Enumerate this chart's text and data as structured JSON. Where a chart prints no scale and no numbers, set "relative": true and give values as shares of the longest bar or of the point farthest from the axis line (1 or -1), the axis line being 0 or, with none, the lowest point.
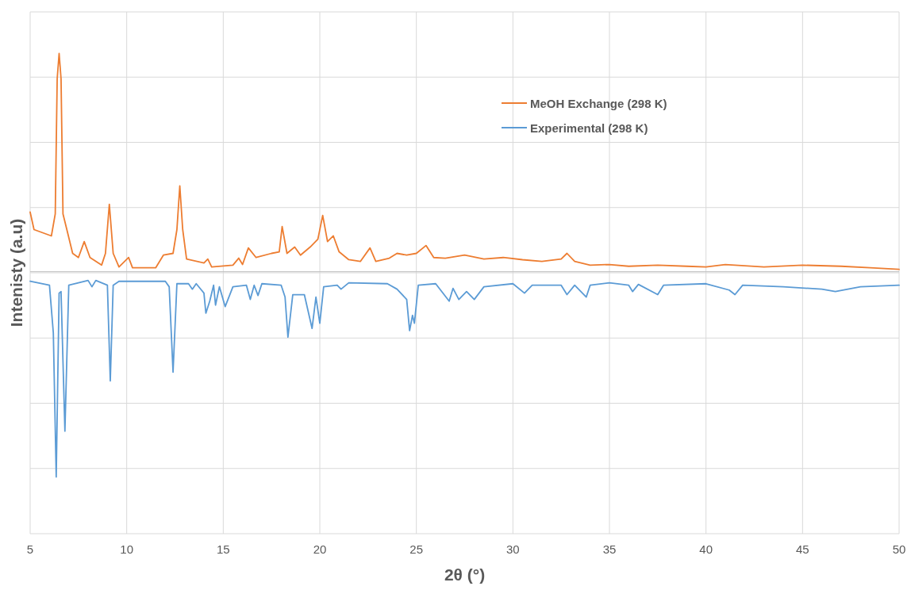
{
  "chart_data": {
    "type": "line",
    "relative": true,
    "xlabel": "2θ (°)",
    "ylabel": "Intenisty (a.u)",
    "xlim": [
      5,
      50
    ],
    "xticks": [
      5,
      10,
      15,
      20,
      25,
      30,
      35,
      40,
      45,
      50
    ],
    "grid": true,
    "legend": "top right",
    "line_style": "solid",
    "marker": "none",
    "series": [
      {
        "name": "MeOH Exchange (298 K)",
        "color": "#ed7d31",
        "x": [
          5.0,
          5.2,
          6.1,
          6.3,
          6.4,
          6.5,
          6.6,
          6.7,
          6.9,
          7.2,
          7.5,
          7.8,
          8.1,
          8.7,
          8.9,
          9.1,
          9.3,
          9.6,
          10.1,
          10.3,
          11.5,
          11.9,
          12.4,
          12.6,
          12.75,
          12.9,
          13.1,
          14.0,
          14.2,
          14.4,
          15.5,
          15.8,
          16.0,
          16.3,
          16.7,
          17.5,
          17.9,
          18.05,
          18.3,
          18.7,
          19.0,
          19.5,
          19.9,
          20.15,
          20.4,
          20.7,
          21.0,
          21.5,
          22.1,
          22.6,
          22.9,
          23.6,
          24.0,
          24.5,
          25.0,
          25.5,
          25.9,
          26.5,
          27.5,
          28.5,
          29.5,
          30.5,
          31.5,
          32.5,
          32.8,
          33.2,
          34.0,
          35.0,
          36.0,
          37.5,
          39.0,
          40.0,
          41.0,
          43.0,
          45.0,
          47.0,
          48.5,
          50.0
        ],
        "values": [
          0.273,
          0.193,
          0.164,
          0.265,
          0.884,
          1.0,
          0.884,
          0.265,
          0.193,
          0.084,
          0.065,
          0.138,
          0.065,
          0.03,
          0.084,
          0.309,
          0.084,
          0.022,
          0.065,
          0.018,
          0.018,
          0.076,
          0.084,
          0.193,
          0.393,
          0.193,
          0.058,
          0.04,
          0.058,
          0.022,
          0.03,
          0.062,
          0.033,
          0.109,
          0.065,
          0.084,
          0.091,
          0.207,
          0.084,
          0.113,
          0.076,
          0.113,
          0.149,
          0.258,
          0.138,
          0.164,
          0.091,
          0.055,
          0.047,
          0.109,
          0.047,
          0.062,
          0.084,
          0.076,
          0.084,
          0.12,
          0.065,
          0.062,
          0.076,
          0.058,
          0.065,
          0.055,
          0.047,
          0.058,
          0.084,
          0.047,
          0.03,
          0.033,
          0.025,
          0.03,
          0.025,
          0.022,
          0.033,
          0.022,
          0.03,
          0.025,
          0.018,
          0.011
        ]
      },
      {
        "name": "Experimental (298 K)",
        "color": "#5b9bd5",
        "x": [
          5.0,
          6.0,
          6.2,
          6.35,
          6.5,
          6.6,
          6.8,
          7.0,
          8.0,
          8.2,
          8.4,
          9.0,
          9.15,
          9.3,
          9.6,
          12.0,
          12.2,
          12.4,
          12.6,
          13.2,
          13.4,
          13.6,
          14.0,
          14.1,
          14.3,
          14.5,
          14.6,
          14.8,
          15.1,
          15.5,
          16.2,
          16.4,
          16.6,
          16.8,
          17.0,
          18.0,
          18.2,
          18.35,
          18.6,
          19.2,
          19.6,
          19.8,
          20.0,
          20.2,
          20.9,
          21.1,
          21.5,
          23.5,
          24.0,
          24.5,
          24.65,
          24.8,
          24.9,
          25.1,
          26.0,
          26.7,
          26.9,
          27.2,
          27.6,
          28.0,
          28.5,
          30.0,
          30.6,
          31.0,
          32.5,
          32.8,
          33.2,
          33.8,
          34.0,
          35.0,
          36.0,
          36.2,
          36.5,
          37.5,
          37.8,
          40.0,
          41.2,
          41.5,
          41.9,
          44.0,
          46.0,
          46.7,
          48.0,
          50.0
        ],
        "values": [
          -0.044,
          -0.062,
          -0.28,
          -0.94,
          -0.098,
          -0.091,
          -0.73,
          -0.062,
          -0.04,
          -0.069,
          -0.04,
          -0.062,
          -0.5,
          -0.062,
          -0.044,
          -0.044,
          -0.069,
          -0.46,
          -0.055,
          -0.055,
          -0.08,
          -0.055,
          -0.098,
          -0.19,
          -0.135,
          -0.062,
          -0.153,
          -0.069,
          -0.16,
          -0.069,
          -0.062,
          -0.127,
          -0.062,
          -0.109,
          -0.055,
          -0.062,
          -0.116,
          -0.3,
          -0.105,
          -0.105,
          -0.26,
          -0.116,
          -0.236,
          -0.069,
          -0.062,
          -0.08,
          -0.051,
          -0.055,
          -0.08,
          -0.127,
          -0.27,
          -0.2,
          -0.236,
          -0.062,
          -0.055,
          -0.135,
          -0.076,
          -0.127,
          -0.091,
          -0.127,
          -0.069,
          -0.055,
          -0.098,
          -0.062,
          -0.062,
          -0.105,
          -0.062,
          -0.116,
          -0.062,
          -0.051,
          -0.062,
          -0.091,
          -0.058,
          -0.105,
          -0.062,
          -0.055,
          -0.084,
          -0.105,
          -0.062,
          -0.069,
          -0.08,
          -0.091,
          -0.069,
          -0.062
        ]
      }
    ]
  }
}
